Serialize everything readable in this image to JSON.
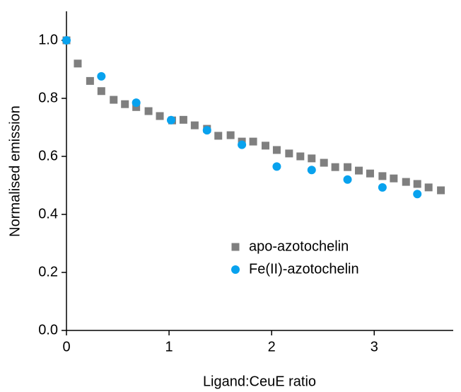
{
  "chart_data": {
    "type": "scatter",
    "x_label": "Ligand:CeuE ratio",
    "y_label": "Normalised emission",
    "xlim": [
      0,
      3.77
    ],
    "ylim": [
      0,
      1.1
    ],
    "xticks": [
      0,
      1,
      2,
      3
    ],
    "yticks": [
      {
        "value": 0,
        "label": "0.0"
      },
      0.2,
      0.4,
      0.6,
      0.8,
      {
        "value": 1,
        "label": "1.0"
      }
    ],
    "grid": false,
    "legend": "center",
    "series": [
      {
        "name": "apo-azotochelin",
        "color": "#7f7f7f",
        "marker": "square",
        "x": [
          0,
          0.11,
          0.23,
          0.34,
          0.46,
          0.57,
          0.68,
          0.8,
          0.91,
          1.03,
          1.14,
          1.25,
          1.37,
          1.48,
          1.6,
          1.71,
          1.82,
          1.94,
          2.05,
          2.17,
          2.28,
          2.39,
          2.51,
          2.62,
          2.74,
          2.85,
          2.96,
          3.08,
          3.19,
          3.31,
          3.42,
          3.53,
          3.65
        ],
        "values": [
          1.0,
          0.92,
          0.86,
          0.825,
          0.795,
          0.78,
          0.77,
          0.756,
          0.739,
          0.724,
          0.726,
          0.707,
          0.695,
          0.671,
          0.673,
          0.651,
          0.651,
          0.637,
          0.622,
          0.61,
          0.6,
          0.593,
          0.578,
          0.563,
          0.563,
          0.551,
          0.541,
          0.532,
          0.524,
          0.512,
          0.505,
          0.493,
          0.483
        ]
      },
      {
        "name": "Fe(II)-azotochelin",
        "color": "#08a2ee",
        "marker": "circle",
        "x": [
          0,
          0.34,
          0.68,
          1.02,
          1.37,
          1.71,
          2.05,
          2.39,
          2.74,
          3.08,
          3.42
        ],
        "values": [
          1.0,
          0.876,
          0.785,
          0.725,
          0.69,
          0.64,
          0.565,
          0.553,
          0.52,
          0.493,
          0.47
        ]
      }
    ]
  }
}
